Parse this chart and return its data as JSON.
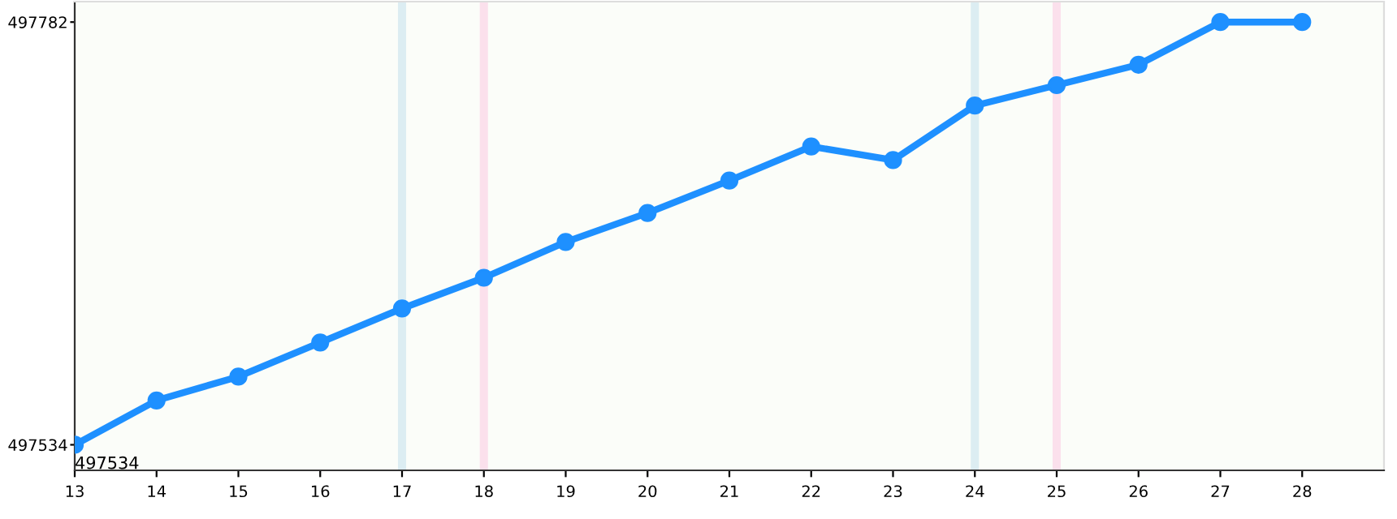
{
  "chart_data": {
    "type": "line",
    "x": [
      13,
      14,
      15,
      16,
      17,
      18,
      19,
      20,
      21,
      22,
      23,
      24,
      25,
      26,
      27,
      28
    ],
    "series": [
      {
        "color": "#1e90ff",
        "values": [
          497534,
          497560,
          497574,
          497594,
          497614,
          497632,
          497653,
          497670,
          497689,
          497709,
          497701,
          497733,
          497745,
          497757,
          497782,
          497782
        ]
      }
    ],
    "xlim": [
      13,
      29
    ],
    "xticks": [
      13,
      14,
      15,
      16,
      17,
      18,
      19,
      20,
      21,
      22,
      23,
      24,
      25,
      26,
      27,
      28
    ],
    "ylim": [
      497519,
      497794
    ],
    "yticks": [
      497534,
      497782
    ],
    "marker": "circle",
    "line_style": "solid",
    "grid": false,
    "bands": [
      {
        "axis": "x",
        "from": 16.95,
        "to": 17.05,
        "color": "#dcedf2"
      },
      {
        "axis": "x",
        "from": 17.95,
        "to": 18.05,
        "color": "#fbe0ec"
      },
      {
        "axis": "x",
        "from": 23.95,
        "to": 24.05,
        "color": "#dcedf2"
      },
      {
        "axis": "x",
        "from": 24.95,
        "to": 25.05,
        "color": "#fbe0ec"
      }
    ],
    "annotations": [
      {
        "text": "497534",
        "x": 13,
        "y": 497534
      }
    ]
  }
}
